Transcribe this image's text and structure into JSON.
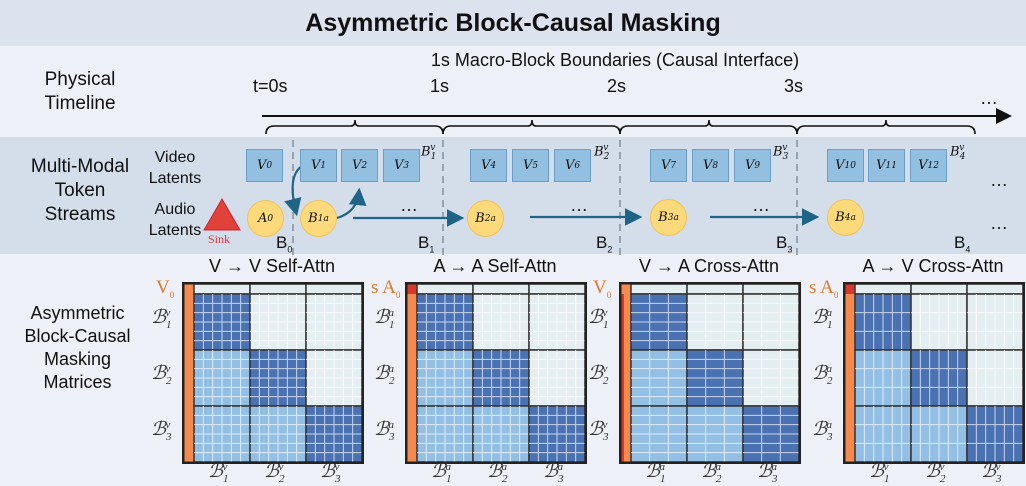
{
  "title": "Asymmetric Block-Causal Masking",
  "timeline": {
    "row_label_1": "Physical",
    "row_label_2": "Timeline",
    "header": "1s Macro-Block Boundaries (Causal Interface)",
    "ticks": [
      "t=0s",
      "1s",
      "2s",
      "3s"
    ],
    "ellipsis": "…"
  },
  "streams": {
    "row_label": [
      "Multi-Modal",
      "Token",
      "Streams"
    ],
    "video_label": [
      "Video",
      "Latents"
    ],
    "audio_label": [
      "Audio",
      "Latents"
    ],
    "sink_label": "Sink",
    "video_tokens": [
      "V",
      "V",
      "V",
      "V",
      "V",
      "V",
      "V",
      "V",
      "V",
      "V",
      "V",
      "V",
      "V"
    ],
    "video_subs": [
      "0",
      "1",
      "2",
      "3",
      "4",
      "5",
      "6",
      "7",
      "8",
      "9",
      "10",
      "11",
      "12"
    ],
    "video_block_labels": [
      "1",
      "2",
      "3",
      "4"
    ],
    "audio_tokens": [
      {
        "base": "A",
        "sub": "0",
        "sup": ""
      },
      {
        "base": "B",
        "sub": "1",
        "sup": "a"
      },
      {
        "base": "B",
        "sub": "2",
        "sup": "a"
      },
      {
        "base": "B",
        "sub": "3",
        "sup": "a"
      },
      {
        "base": "B",
        "sub": "4",
        "sup": "a"
      }
    ],
    "boundary_labels": [
      "0",
      "1",
      "2",
      "3",
      "4"
    ],
    "ellipsis": "…"
  },
  "matrices": {
    "row_label": [
      "Asymmetric",
      "Block-Causal",
      "Masking",
      "Matrices"
    ],
    "mask_pattern": [
      [
        "diag",
        "lower-hidden",
        "lower-hidden"
      ],
      [
        "attend",
        "diag",
        "masked"
      ],
      [
        "attend",
        "attend",
        "diag"
      ]
    ],
    "colors": {
      "diag": "#4a72b3",
      "attend": "#92bfe3",
      "masked": "#e4eef1",
      "sink": "#f58a4e",
      "sink_dark": "#d8382a"
    },
    "panels": [
      {
        "title": "V → V  Self-Attn",
        "sink": "V",
        "sink_sub": "0",
        "sink_prefix": "",
        "rows": "v",
        "cols": "v"
      },
      {
        "title": "A → A  Self-Attn",
        "sink": "A",
        "sink_sub": "0",
        "sink_prefix": "s",
        "rows": "a",
        "cols": "a"
      },
      {
        "title": "V → A  Cross-Attn",
        "sink": "V",
        "sink_sub": "0",
        "sink_prefix": "",
        "rows": "v",
        "cols": "a"
      },
      {
        "title": "A → V  Cross-Attn",
        "sink": "A",
        "sink_sub": "0",
        "sink_prefix": "s",
        "rows": "a",
        "cols": "v"
      }
    ],
    "block_symbol": "ℬ",
    "indices": [
      "1",
      "2",
      "3"
    ]
  }
}
